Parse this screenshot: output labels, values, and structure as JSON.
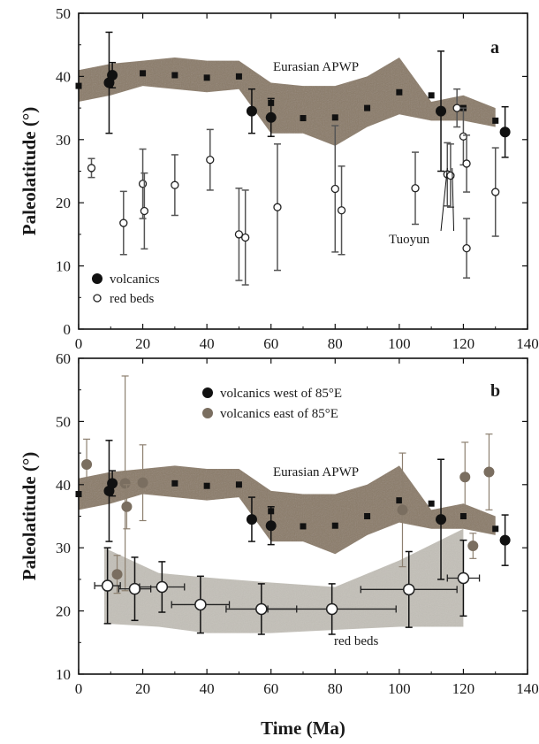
{
  "chart_data": [
    {
      "type": "scatter",
      "panel": "a",
      "xlim": [
        0,
        140
      ],
      "ylim": [
        0,
        50
      ],
      "xticks": [
        0,
        20,
        40,
        60,
        80,
        100,
        120,
        140
      ],
      "yticks": [
        0,
        10,
        20,
        30,
        40,
        50
      ],
      "ylabel": "Paleolatitude (°)",
      "legend": {
        "placement": "bottom-left",
        "entries": [
          "volcanics",
          "red beds"
        ]
      },
      "annotations": {
        "band": "Eurasian APWP",
        "note": "Tuoyun"
      },
      "apwp_band": {
        "x": [
          0,
          10,
          20,
          30,
          40,
          50,
          60,
          70,
          80,
          90,
          100,
          110,
          120,
          130
        ],
        "upper": [
          41,
          42,
          42.5,
          43,
          42.5,
          42.5,
          39,
          38.5,
          38.5,
          40,
          43,
          36,
          37,
          35
        ],
        "lower": [
          36,
          37,
          38.5,
          38,
          37.5,
          38,
          31,
          31,
          29,
          32,
          34,
          33,
          33,
          32
        ]
      },
      "series": [
        {
          "name": "Eurasian APWP",
          "marker": "square",
          "points": [
            {
              "x": 0,
              "y": 38.5
            },
            {
              "x": 10,
              "y": 39.5
            },
            {
              "x": 20,
              "y": 40.5
            },
            {
              "x": 30,
              "y": 40.2
            },
            {
              "x": 40,
              "y": 39.8
            },
            {
              "x": 50,
              "y": 40.0
            },
            {
              "x": 60,
              "y": 35.8
            },
            {
              "x": 70,
              "y": 33.4
            },
            {
              "x": 80,
              "y": 33.5
            },
            {
              "x": 90,
              "y": 35.0
            },
            {
              "x": 100,
              "y": 37.5
            },
            {
              "x": 110,
              "y": 37.0
            },
            {
              "x": 120,
              "y": 35.0
            },
            {
              "x": 130,
              "y": 33.0
            }
          ]
        },
        {
          "name": "volcanics",
          "marker": "filled",
          "points": [
            {
              "x": 9.5,
              "y": 39,
              "err": 8
            },
            {
              "x": 10.5,
              "y": 40.2,
              "err": 2
            },
            {
              "x": 54,
              "y": 34.5,
              "err": 3.5
            },
            {
              "x": 60,
              "y": 33.5,
              "err": 3
            },
            {
              "x": 113,
              "y": 34.5,
              "err": 9.5
            },
            {
              "x": 133,
              "y": 31.2,
              "err": 4
            }
          ]
        },
        {
          "name": "red beds",
          "marker": "open",
          "points": [
            {
              "x": 4,
              "y": 25.5,
              "err": 1.5
            },
            {
              "x": 14,
              "y": 16.8,
              "err": 5
            },
            {
              "x": 20,
              "y": 23,
              "err": 5.5
            },
            {
              "x": 20.5,
              "y": 18.7,
              "err": 6
            },
            {
              "x": 30,
              "y": 22.8,
              "err": 4.8
            },
            {
              "x": 41,
              "y": 26.8,
              "err": 4.8
            },
            {
              "x": 50,
              "y": 15,
              "err": 7.3
            },
            {
              "x": 52,
              "y": 14.5,
              "err": 7.5
            },
            {
              "x": 62,
              "y": 19.3,
              "err": 10
            },
            {
              "x": 80,
              "y": 22.2,
              "err": 10
            },
            {
              "x": 82,
              "y": 18.8,
              "err": 7
            },
            {
              "x": 105,
              "y": 22.3,
              "err": 5.7
            },
            {
              "x": 115,
              "y": 24.5,
              "err": 5
            },
            {
              "x": 116,
              "y": 24.3,
              "err": 5
            },
            {
              "x": 118,
              "y": 35,
              "err": 3
            },
            {
              "x": 120,
              "y": 30.5,
              "err": 4.5
            },
            {
              "x": 121,
              "y": 26.2,
              "err": 4.5
            },
            {
              "x": 121,
              "y": 12.8,
              "err": 4.7
            },
            {
              "x": 130,
              "y": 21.7,
              "err": 7
            }
          ]
        }
      ]
    },
    {
      "type": "scatter",
      "panel": "b",
      "xlim": [
        0,
        140
      ],
      "ylim": [
        10,
        60
      ],
      "xticks": [
        0,
        20,
        40,
        60,
        80,
        100,
        120,
        140
      ],
      "yticks": [
        10,
        20,
        30,
        40,
        50,
        60
      ],
      "xlabel": "Time (Ma)",
      "ylabel": "Paleolatitude (°)",
      "legend": {
        "placement": "top-center",
        "entries": [
          "volcanics west of 85°E",
          "volcanics east of 85°E"
        ]
      },
      "annotations": {
        "band": "Eurasian APWP",
        "redbeds_label": "red beds"
      },
      "apwp_band": {
        "x": [
          0,
          10,
          20,
          30,
          40,
          50,
          60,
          70,
          80,
          90,
          100,
          110,
          120,
          130
        ],
        "upper": [
          41,
          42,
          42.5,
          43,
          42.5,
          42.5,
          39,
          38.5,
          38.5,
          40,
          43,
          36,
          37,
          35
        ],
        "lower": [
          36,
          37,
          38.5,
          38,
          37.5,
          38,
          31,
          31,
          29,
          32,
          34,
          33,
          33,
          32
        ]
      },
      "redbeds_band": {
        "upper": [
          [
            8,
            30
          ],
          [
            25,
            26
          ],
          [
            40,
            25.3
          ],
          [
            60,
            24.5
          ],
          [
            80,
            23.8
          ],
          [
            100,
            28
          ],
          [
            120,
            33
          ]
        ],
        "lower": [
          [
            120,
            17.5
          ],
          [
            100,
            17.5
          ],
          [
            80,
            17
          ],
          [
            60,
            16.5
          ],
          [
            40,
            16.5
          ],
          [
            25,
            17.5
          ],
          [
            8,
            18
          ]
        ]
      },
      "series": [
        {
          "name": "Eurasian APWP",
          "marker": "square",
          "points": [
            {
              "x": 0,
              "y": 38.5
            },
            {
              "x": 10,
              "y": 39.5
            },
            {
              "x": 20,
              "y": 40.5
            },
            {
              "x": 30,
              "y": 40.2
            },
            {
              "x": 40,
              "y": 39.8
            },
            {
              "x": 50,
              "y": 40.0
            },
            {
              "x": 60,
              "y": 35.8
            },
            {
              "x": 70,
              "y": 33.4
            },
            {
              "x": 80,
              "y": 33.5
            },
            {
              "x": 90,
              "y": 35.0
            },
            {
              "x": 100,
              "y": 37.5
            },
            {
              "x": 110,
              "y": 37.0
            },
            {
              "x": 120,
              "y": 35.0
            },
            {
              "x": 130,
              "y": 33.0
            }
          ]
        },
        {
          "name": "volcanics west of 85°E",
          "marker": "filled",
          "points": [
            {
              "x": 9.5,
              "y": 39,
              "err": 8
            },
            {
              "x": 10.5,
              "y": 40.2,
              "err": 2
            },
            {
              "x": 54,
              "y": 34.5,
              "err": 3.5
            },
            {
              "x": 60,
              "y": 33.5,
              "err": 3
            },
            {
              "x": 113,
              "y": 34.5,
              "err": 9.5
            },
            {
              "x": 133,
              "y": 31.2,
              "err": 4
            }
          ]
        },
        {
          "name": "volcanics east of 85°E",
          "marker": "gray",
          "points": [
            {
              "x": 2.5,
              "y": 43.2,
              "err": 4
            },
            {
              "x": 12,
              "y": 25.8,
              "err": 3
            },
            {
              "x": 14.5,
              "y": 40.2,
              "err": 17
            },
            {
              "x": 15,
              "y": 36.5,
              "err": 3.5
            },
            {
              "x": 20,
              "y": 40.3,
              "err": 6
            },
            {
              "x": 101,
              "y": 36,
              "err": 9
            },
            {
              "x": 120.5,
              "y": 41.2,
              "err": 5.5
            },
            {
              "x": 123,
              "y": 30.3,
              "err": 2
            },
            {
              "x": 128,
              "y": 42,
              "err": 6
            }
          ]
        },
        {
          "name": "red beds",
          "marker": "open-large",
          "points": [
            {
              "x": 9,
              "y": 24,
              "xerr": 4,
              "err": 6
            },
            {
              "x": 17.5,
              "y": 23.5,
              "xerr": 5,
              "err": 5
            },
            {
              "x": 26,
              "y": 23.8,
              "xerr": 7,
              "err": 4
            },
            {
              "x": 38,
              "y": 21,
              "xerr": 9,
              "err": 4.5
            },
            {
              "x": 57,
              "y": 20.3,
              "xerr": 11,
              "err": 4
            },
            {
              "x": 79,
              "y": 20.3,
              "xerr": 20,
              "err": 4
            },
            {
              "x": 103,
              "y": 23.4,
              "xerr": 15,
              "err": 6
            },
            {
              "x": 120,
              "y": 25.2,
              "xerr": 5,
              "err": 6
            }
          ]
        }
      ]
    }
  ]
}
